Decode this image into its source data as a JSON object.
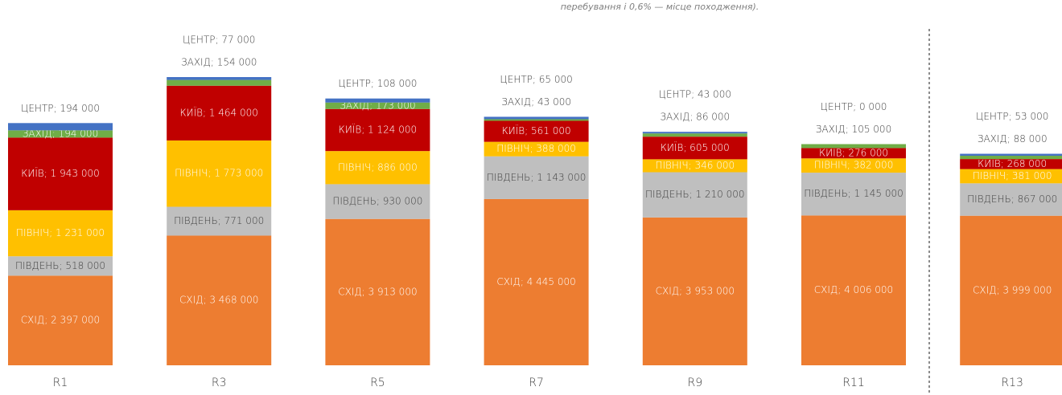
{
  "chart_data": {
    "type": "stacked_bar",
    "note": "перебування і 0,6% — місце походження).",
    "categories": [
      "R1",
      "R3",
      "R5",
      "R7",
      "R9",
      "R11",
      "R13"
    ],
    "series": [
      {
        "name": "СХІД",
        "color": "#ED7D31",
        "label_color": "#ffffff",
        "values": [
          2397000,
          3468000,
          3913000,
          4445000,
          3953000,
          4006000,
          3999000
        ],
        "value_labels": [
          "СХІД; 2 397 000",
          "СХІД; 3 468 000",
          "СХІД; 3 913 000",
          "СХІД; 4 445 000",
          "СХІД; 3 953 000",
          "СХІД; 4 006 000",
          "СХІД; 3 999 000"
        ]
      },
      {
        "name": "ПІВДЕНЬ",
        "color": "#BFBFBF",
        "label_color": "#404040",
        "values": [
          518000,
          771000,
          930000,
          1143000,
          1210000,
          1145000,
          867000
        ],
        "value_labels": [
          "ПІВДЕНЬ; 518 000",
          "ПІВДЕНЬ; 771 000",
          "ПІВДЕНЬ; 930 000",
          "ПІВДЕНЬ; 1 143 000",
          "ПІВДЕНЬ; 1 210 000",
          "ПІВДЕНЬ; 1 145 000",
          "ПІВДЕНЬ; 867 000"
        ]
      },
      {
        "name": "ПІВНІЧ",
        "color": "#FFC000",
        "label_color": "#ffffff",
        "values": [
          1231000,
          1773000,
          886000,
          388000,
          346000,
          382000,
          381000
        ],
        "value_labels": [
          "ПІВНІЧ; 1 231 000",
          "ПІВНІЧ; 1 773 000",
          "ПІВНІЧ; 886 000",
          "ПІВНІЧ; 388 000",
          "ПІВНІЧ; 346 000",
          "ПІВНІЧ; 382 000",
          "ПІВНІЧ; 381 000"
        ]
      },
      {
        "name": "КИЇВ",
        "color": "#C00000",
        "label_color": "#ffffff",
        "values": [
          1943000,
          1464000,
          1124000,
          561000,
          605000,
          276000,
          268000
        ],
        "value_labels": [
          "КИЇВ; 1 943 000",
          "КИЇВ; 1 464 000",
          "КИЇВ; 1 124 000",
          "КИЇВ; 561 000",
          "КИЇВ; 605 000",
          "КИЇВ; 276 000",
          "КИЇВ; 268 000"
        ]
      },
      {
        "name": "ЗАХІД",
        "color": "#70AD47",
        "label_color": "#ffffff",
        "values": [
          194000,
          154000,
          173000,
          43000,
          86000,
          105000,
          88000
        ],
        "value_labels": [
          "ЗАХІД; 194 000",
          "ЗАХІД; 154 000",
          "ЗАХІД; 173 000",
          "ЗАХІД; 43 000",
          "ЗАХІД; 86 000",
          "ЗАХІД; 105 000",
          "ЗАХІД; 88 000"
        ]
      },
      {
        "name": "ЦЕНТР",
        "color": "#4472C4",
        "label_color": "#404040",
        "values": [
          194000,
          77000,
          108000,
          65000,
          43000,
          0,
          53000
        ],
        "value_labels": [
          "ЦЕНТР; 194 000",
          "ЦЕНТР; 77 000",
          "ЦЕНТР; 108 000",
          "ЦЕНТР; 65 000",
          "ЦЕНТР; 43 000",
          "ЦЕНТР; 0 000",
          "ЦЕНТР; 53 000"
        ]
      }
    ]
  }
}
